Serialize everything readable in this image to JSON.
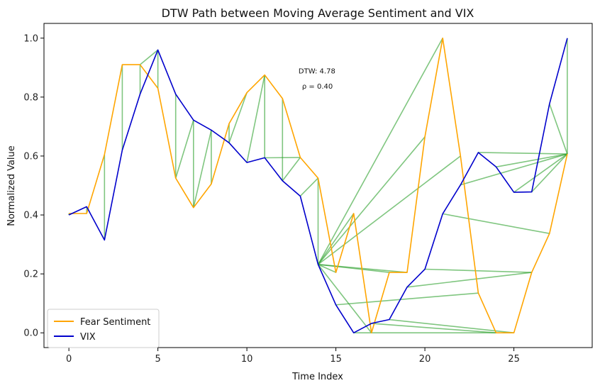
{
  "chart_data": {
    "type": "line",
    "title": "DTW Path between Moving Average Sentiment and VIX",
    "xlabel": "Time Index",
    "ylabel": "Normalized Value",
    "xlim": [
      -1.4,
      29.4
    ],
    "ylim": [
      -0.05,
      1.05
    ],
    "xticks": [
      0,
      5,
      10,
      15,
      20,
      25
    ],
    "yticks": [
      0.0,
      0.2,
      0.4,
      0.6,
      0.8,
      1.0
    ],
    "grid": false,
    "legend_position": "lower-left",
    "annotations": [
      {
        "text": "DTW: 4.78",
        "x": 12.9,
        "y": 0.88
      },
      {
        "text": "ρ = 0.40",
        "x": 13.1,
        "y": 0.828
      }
    ],
    "series": [
      {
        "name": "Fear Sentiment",
        "color": "#FFA500",
        "x": [
          0,
          1,
          2,
          3,
          4,
          5,
          6,
          7,
          8,
          9,
          10,
          11,
          12,
          13,
          14,
          15,
          16,
          17,
          18,
          19,
          20,
          21,
          22,
          23,
          24,
          25,
          26,
          27,
          28
        ],
        "y": [
          0.405,
          0.405,
          0.605,
          0.91,
          0.91,
          0.83,
          0.525,
          0.425,
          0.505,
          0.71,
          0.815,
          0.875,
          0.795,
          0.595,
          0.525,
          0.205,
          0.405,
          0.0,
          0.205,
          0.205,
          0.665,
          1.0,
          0.6,
          0.135,
          0.0,
          0.0,
          0.205,
          0.337,
          0.607
        ]
      },
      {
        "name": "VIX",
        "color": "#0000CC",
        "x": [
          0,
          1,
          2,
          3,
          4,
          5,
          6,
          7,
          8,
          9,
          10,
          11,
          12,
          13,
          14,
          15,
          16,
          17,
          18,
          19,
          20,
          21,
          22,
          23,
          24,
          25,
          26,
          27,
          28
        ],
        "y": [
          0.4,
          0.428,
          0.315,
          0.62,
          0.81,
          0.96,
          0.81,
          0.722,
          0.688,
          0.645,
          0.578,
          0.594,
          0.516,
          0.464,
          0.232,
          0.095,
          0.0,
          0.032,
          0.045,
          0.155,
          0.216,
          0.404,
          0.502,
          0.612,
          0.563,
          0.477,
          0.478,
          0.777,
          1.0
        ]
      }
    ],
    "dtw_path": {
      "color": "#2CA02C",
      "pairs": [
        [
          0,
          0
        ],
        [
          1,
          1
        ],
        [
          2,
          2
        ],
        [
          3,
          3
        ],
        [
          4,
          4
        ],
        [
          4,
          5
        ],
        [
          5,
          5
        ],
        [
          6,
          6
        ],
        [
          6,
          7
        ],
        [
          7,
          7
        ],
        [
          7,
          8
        ],
        [
          8,
          8
        ],
        [
          9,
          9
        ],
        [
          10,
          9
        ],
        [
          11,
          10
        ],
        [
          11,
          11
        ],
        [
          12,
          12
        ],
        [
          13,
          11
        ],
        [
          13,
          12
        ],
        [
          14,
          13
        ],
        [
          14,
          14
        ],
        [
          15,
          14
        ],
        [
          16,
          14
        ],
        [
          17,
          14
        ],
        [
          18,
          14
        ],
        [
          19,
          14
        ],
        [
          20,
          14
        ],
        [
          21,
          14
        ],
        [
          22,
          14
        ],
        [
          23,
          15
        ],
        [
          24,
          16
        ],
        [
          24,
          17
        ],
        [
          25,
          18
        ],
        [
          26,
          19
        ],
        [
          26,
          20
        ],
        [
          27,
          21
        ],
        [
          28,
          22
        ],
        [
          28,
          23
        ],
        [
          28,
          24
        ],
        [
          28,
          25
        ],
        [
          28,
          26
        ],
        [
          28,
          27
        ],
        [
          28,
          28
        ]
      ]
    }
  }
}
